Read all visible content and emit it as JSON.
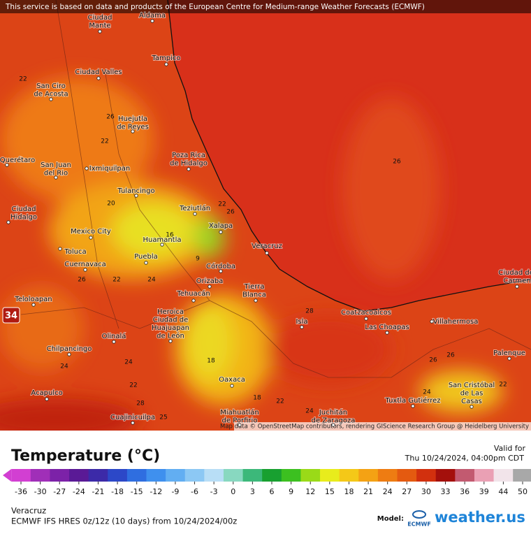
{
  "banner": "This service is based on data and products of the European Centre for Medium-range Weather Forecasts (ECMWF)",
  "map": {
    "cities": [
      {
        "lines": [
          "Aldama"
        ]
      },
      {
        "lines": [
          "Ciudad",
          "Mante"
        ]
      },
      {
        "lines": [
          "Tampico"
        ]
      },
      {
        "lines": [
          "Ciudad Valles"
        ]
      },
      {
        "lines": [
          "San Ciro",
          "de Acosta"
        ]
      },
      {
        "lines": [
          "Huejutla",
          "de Reyes"
        ]
      },
      {
        "lines": [
          "Poza Rica",
          "de Hidalgo"
        ]
      },
      {
        "lines": [
          "San Juan",
          "del Rio"
        ]
      },
      {
        "lines": [
          "Ixmiquilpan"
        ]
      },
      {
        "lines": [
          "Querétaro"
        ]
      },
      {
        "lines": [
          "Tulancingo"
        ]
      },
      {
        "lines": [
          "Ciudad",
          "Hidalgo"
        ]
      },
      {
        "lines": [
          "Teziutlán"
        ]
      },
      {
        "lines": [
          "Xalapa"
        ]
      },
      {
        "lines": [
          "Mexico City"
        ]
      },
      {
        "lines": [
          "Huamantla"
        ]
      },
      {
        "lines": [
          "Veracruz"
        ]
      },
      {
        "lines": [
          "Toluca"
        ]
      },
      {
        "lines": [
          "Puebla"
        ]
      },
      {
        "lines": [
          "Cuernavaca"
        ]
      },
      {
        "lines": [
          "Córdoba"
        ]
      },
      {
        "lines": [
          "Orizaba"
        ]
      },
      {
        "lines": [
          "Tierra",
          "Blanca"
        ]
      },
      {
        "lines": [
          "Tehuacán"
        ]
      },
      {
        "lines": [
          "Teloloapan"
        ]
      },
      {
        "lines": [
          "Coatzacoalcos"
        ]
      },
      {
        "lines": [
          "Heroica",
          "Ciudad de",
          "Huajuapan",
          "de León"
        ]
      },
      {
        "lines": [
          "Villahermosa"
        ]
      },
      {
        "lines": [
          "Isla"
        ]
      },
      {
        "lines": [
          "Las Choapas"
        ]
      },
      {
        "lines": [
          "Olinalá"
        ]
      },
      {
        "lines": [
          "Chilpancingo"
        ]
      },
      {
        "lines": [
          "Palenque"
        ]
      },
      {
        "lines": [
          "Oaxaca"
        ]
      },
      {
        "lines": [
          "San Cristóbal",
          "de Las",
          "Casas"
        ]
      },
      {
        "lines": [
          "Acapulco"
        ]
      },
      {
        "lines": [
          "Tuxtla Gutiérrez"
        ]
      },
      {
        "lines": [
          "Juchitán",
          "de Zaragoza"
        ]
      },
      {
        "lines": [
          "Miahuatlán",
          "de Porfirio"
        ]
      },
      {
        "lines": [
          "Cuajinicuilpa"
        ]
      },
      {
        "lines": [
          "Ciudad del",
          "Carmen"
        ]
      }
    ],
    "contours": [
      22,
      26,
      22,
      26,
      20,
      22,
      26,
      16,
      9,
      22,
      24,
      26,
      28,
      18,
      24,
      24,
      22,
      18,
      22,
      24,
      24,
      22,
      26,
      26,
      28,
      25
    ],
    "marker": 34,
    "attribution": "Map data © OpenStreetMap contributors, rendering GIScience Research Group @ Heidelberg University"
  },
  "legend": {
    "title": "Temperature (°C)",
    "valid_label": "Valid for",
    "valid_time": "Thu 10/24/2024, 04:00pm CDT",
    "ticks": [
      -36,
      -30,
      -27,
      -24,
      -21,
      -18,
      -15,
      -12,
      -9,
      -6,
      -3,
      0,
      3,
      6,
      9,
      12,
      15,
      18,
      21,
      24,
      27,
      30,
      33,
      36,
      39,
      44,
      50
    ],
    "colors": [
      "#d23fd2",
      "#a02fb8",
      "#7c22a8",
      "#5a1a96",
      "#3c2aa8",
      "#2c48c8",
      "#2f6ee0",
      "#3f90ee",
      "#62aef2",
      "#8cc8f4",
      "#b8def6",
      "#88d8c0",
      "#3cb87a",
      "#18a030",
      "#3cc020",
      "#9ada18",
      "#e8ec1c",
      "#f4c818",
      "#f4a214",
      "#ee7c12",
      "#e45a10",
      "#d2300e",
      "#a4100c",
      "#c25a70",
      "#eaa0b4",
      "#f2e4ea",
      "#a8a8a8"
    ]
  },
  "footer": {
    "location": "Veracruz",
    "model_run": "ECMWF IFS HRES 0z/12z (10 days) from 10/24/2024/00z",
    "model_label": "Model:",
    "model_logo": "ECMWF",
    "brand": "weather.us"
  }
}
